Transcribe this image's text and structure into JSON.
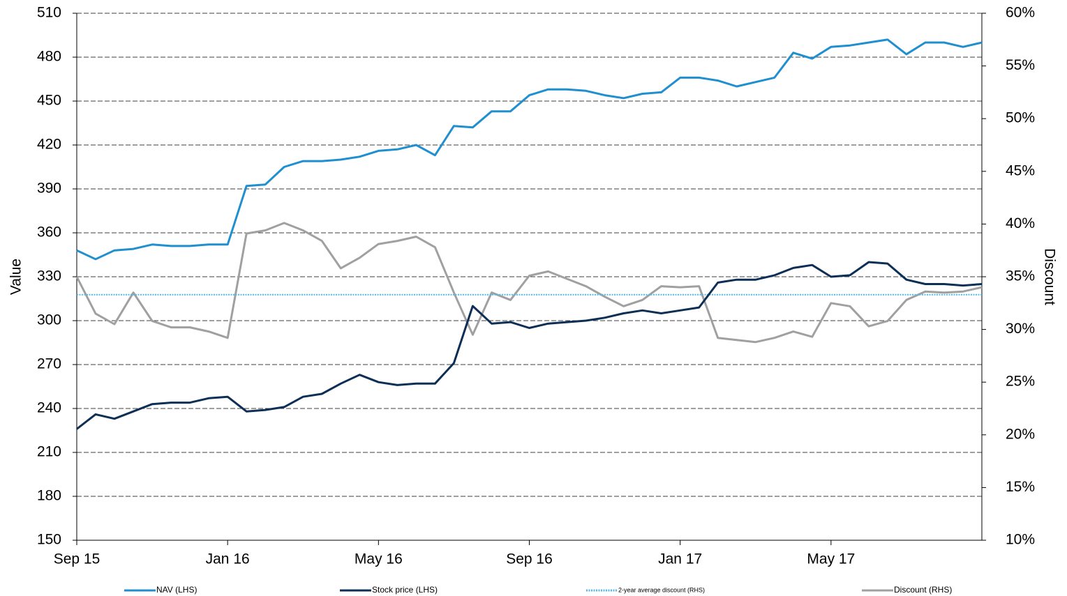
{
  "chart_data": {
    "type": "line",
    "categories": [
      "Sep 15",
      null,
      null,
      null,
      null,
      null,
      null,
      null,
      "Jan 16",
      null,
      null,
      null,
      null,
      null,
      null,
      null,
      "May 16",
      null,
      null,
      null,
      null,
      null,
      null,
      null,
      "Sep 16",
      null,
      null,
      null,
      null,
      null,
      null,
      null,
      "Jan 17",
      null,
      null,
      null,
      null,
      null,
      null,
      null,
      "May 17",
      null,
      null,
      null,
      null,
      null,
      null,
      null,
      null
    ],
    "ylabel": "Value",
    "y2label": "Discount",
    "ylim": [
      150,
      510
    ],
    "yticks": [
      150,
      180,
      210,
      240,
      270,
      300,
      330,
      360,
      390,
      420,
      450,
      480,
      510
    ],
    "y2lim": [
      10,
      60
    ],
    "y2ticks": [
      {
        "value": 10,
        "label": "10%"
      },
      {
        "value": 15,
        "label": "15%"
      },
      {
        "value": 20,
        "label": "20%"
      },
      {
        "value": 25,
        "label": "25%"
      },
      {
        "value": 30,
        "label": "30%"
      },
      {
        "value": 35,
        "label": "35%"
      },
      {
        "value": 40,
        "label": "40%"
      },
      {
        "value": 45,
        "label": "45%"
      },
      {
        "value": 50,
        "label": "50%"
      },
      {
        "value": 55,
        "label": "55%"
      },
      {
        "value": 60,
        "label": "60%"
      }
    ],
    "grid": true,
    "legend": "bottom",
    "series": [
      {
        "name": "NAV (LHS)",
        "color": "#1f8fd0",
        "style": "solid",
        "values": [
          348,
          342,
          348,
          349,
          352,
          351,
          351,
          352,
          352,
          392,
          393,
          405,
          409,
          409,
          410,
          412,
          416,
          417,
          420,
          413,
          433,
          432,
          443,
          443,
          454,
          458,
          458,
          457,
          454,
          452,
          455,
          456,
          466,
          466,
          464,
          460,
          463,
          466,
          483,
          479,
          487,
          488,
          490,
          492,
          482,
          490,
          490,
          487,
          490
        ]
      },
      {
        "name": "Stock price (LHS)",
        "color": "#0d2f55",
        "style": "solid",
        "values": [
          226,
          236,
          233,
          238,
          243,
          244,
          244,
          247,
          248,
          238,
          239,
          241,
          248,
          250,
          257,
          263,
          258,
          256,
          257,
          257,
          271,
          310,
          298,
          299,
          295,
          298,
          299,
          300,
          302,
          305,
          307,
          305,
          307,
          309,
          326,
          328,
          328,
          331,
          336,
          338,
          330,
          331,
          340,
          339,
          328,
          325,
          325,
          324,
          325
        ]
      },
      {
        "name": "2-year average discount (RHS)",
        "color": "#59b7e8",
        "style": "dotted",
        "axis": "y2",
        "values": [
          33.3,
          33.3,
          33.3,
          33.3,
          33.3,
          33.3,
          33.3,
          33.3,
          33.3,
          33.3,
          33.3,
          33.3,
          33.3,
          33.3,
          33.3,
          33.3,
          33.3,
          33.3,
          33.3,
          33.3,
          33.3,
          33.3,
          33.3,
          33.3,
          33.3,
          33.3,
          33.3,
          33.3,
          33.3,
          33.3,
          33.3,
          33.3,
          33.3,
          33.3,
          33.3,
          33.3,
          33.3,
          33.3,
          33.3,
          33.3,
          33.3,
          33.3,
          33.3,
          33.3,
          33.3,
          33.3,
          33.3,
          33.3,
          33.3
        ]
      },
      {
        "name": "Discount (RHS)",
        "color": "#a0a0a0",
        "style": "solid",
        "axis": "y2",
        "values": [
          35,
          31.5,
          30.5,
          33.5,
          30.8,
          30.2,
          30.2,
          29.8,
          29.2,
          39.1,
          39.4,
          40.1,
          39.4,
          38.4,
          35.8,
          36.8,
          38.1,
          38.4,
          38.8,
          37.8,
          33.5,
          29.5,
          33.5,
          32.8,
          35.1,
          35.5,
          34.8,
          34.1,
          33.1,
          32.2,
          32.8,
          34.1,
          34,
          34.1,
          29.2,
          29,
          28.8,
          29.2,
          29.8,
          29.3,
          32.5,
          32.2,
          30.3,
          30.8,
          32.8,
          33.6,
          33.5,
          33.6,
          34
        ]
      }
    ]
  }
}
